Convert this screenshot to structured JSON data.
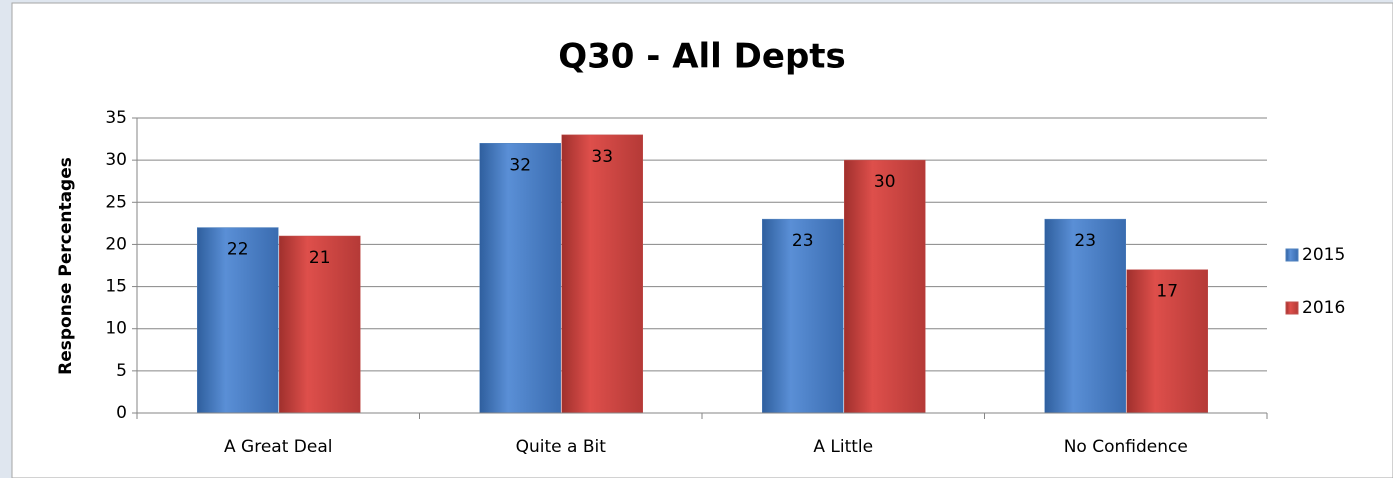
{
  "chart_data": {
    "type": "bar",
    "title": "Q30 - All Depts",
    "y_label": "Response Percentages",
    "categories": [
      "A Great Deal",
      "Quite a Bit",
      "A Little",
      "No Confidence"
    ],
    "series": [
      {
        "name": "2015",
        "color": "#4f81bd",
        "values": [
          22,
          32,
          23,
          23
        ]
      },
      {
        "name": "2016",
        "color": "#c0504d",
        "values": [
          21,
          33,
          30,
          17
        ]
      }
    ],
    "ylim": [
      0,
      35
    ],
    "yticks": [
      0,
      5,
      10,
      15,
      20,
      25,
      30,
      35
    ],
    "grid": true,
    "legend": "right"
  }
}
